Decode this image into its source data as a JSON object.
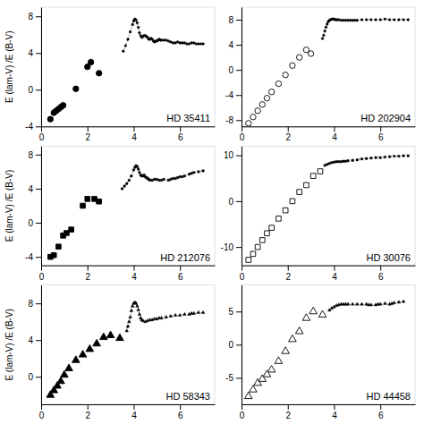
{
  "chart_data": [
    {
      "type": "scatter",
      "title": "HD 35411",
      "y_label": "E (lam-V) /E (B-V)",
      "xlim": [
        0,
        7.5
      ],
      "xticks": [
        0,
        2,
        4,
        6
      ],
      "ylim": [
        -4,
        9
      ],
      "yticks": [
        -4,
        0,
        4,
        8
      ],
      "series": [
        {
          "type": "scatter",
          "marker": "circle",
          "color": "black",
          "x": [
            0.4,
            0.55,
            0.65,
            0.75,
            0.85,
            0.95,
            1.5,
            2.0,
            2.15,
            2.5
          ],
          "values": [
            -3.2,
            -2.5,
            -2.3,
            -2.1,
            -1.9,
            -1.7,
            0.1,
            2.5,
            3.0,
            1.8
          ]
        },
        {
          "type": "line",
          "marker": "circle",
          "line_style": "dotted",
          "color": "black",
          "x": [
            3.55,
            3.65,
            3.75,
            3.85,
            3.95,
            4.0,
            4.05,
            4.1,
            4.15,
            4.2,
            4.25,
            4.3,
            4.35,
            4.4,
            4.45,
            4.5,
            4.55,
            4.6,
            4.65,
            4.7,
            4.75,
            4.8,
            4.85,
            4.9,
            4.95,
            5.0,
            5.05,
            5.1,
            5.15,
            5.2,
            5.3,
            5.4,
            5.5,
            5.6,
            5.7,
            5.8,
            5.9,
            6.0,
            6.1,
            6.2,
            6.3,
            6.4,
            6.5,
            6.6,
            6.7,
            6.8,
            6.9,
            7.0
          ],
          "values": [
            4.2,
            4.8,
            5.5,
            6.3,
            7.1,
            7.5,
            7.7,
            7.6,
            7.3,
            6.8,
            6.2,
            5.9,
            5.7,
            5.8,
            5.9,
            5.9,
            5.8,
            5.7,
            5.5,
            5.5,
            5.6,
            5.5,
            5.3,
            5.2,
            5.3,
            5.3,
            5.4,
            5.5,
            5.4,
            5.4,
            5.4,
            5.4,
            5.3,
            5.2,
            5.1,
            5.1,
            5.2,
            5.1,
            5.1,
            5.1,
            5.0,
            5.0,
            5.1,
            5.1,
            5.0,
            5.0,
            5.0,
            5.0
          ]
        }
      ]
    },
    {
      "type": "scatter",
      "title": "HD 202904",
      "xlim": [
        0,
        7.5
      ],
      "xticks": [
        0,
        2,
        4,
        6
      ],
      "ylim": [
        -9,
        10
      ],
      "yticks": [
        -8,
        -4,
        0,
        4,
        8
      ],
      "series": [
        {
          "type": "scatter",
          "marker": "open-circle",
          "color": "black",
          "x": [
            0.3,
            0.5,
            0.7,
            0.9,
            1.1,
            1.3,
            1.6,
            1.9,
            2.2,
            2.5,
            2.8,
            3.0
          ],
          "values": [
            -8.5,
            -7.5,
            -6.5,
            -5.5,
            -4.5,
            -3.5,
            -2.2,
            -0.8,
            0.7,
            2.0,
            3.2,
            2.6
          ]
        },
        {
          "type": "line",
          "marker": "circle",
          "line_style": "dotted",
          "color": "black",
          "x": [
            3.5,
            3.55,
            3.6,
            3.65,
            3.7,
            3.75,
            3.8,
            3.85,
            3.9,
            3.95,
            4.0,
            4.05,
            4.1,
            4.15,
            4.2,
            4.3,
            4.4,
            4.5,
            4.6,
            4.7,
            4.8,
            4.9,
            5.0,
            5.2,
            5.4,
            5.6,
            5.8,
            6.0,
            6.2,
            6.4,
            6.6,
            6.8,
            7.0,
            7.2
          ],
          "values": [
            5.0,
            5.5,
            6.2,
            6.8,
            7.3,
            7.7,
            7.9,
            8.0,
            8.1,
            8.1,
            8.1,
            8.0,
            8.0,
            8.0,
            8.0,
            7.9,
            7.9,
            7.9,
            7.9,
            7.9,
            7.9,
            7.9,
            7.9,
            8.0,
            8.0,
            8.0,
            8.0,
            8.0,
            8.1,
            8.0,
            8.0,
            8.0,
            8.0,
            8.0
          ]
        }
      ]
    },
    {
      "type": "scatter",
      "title": "HD 212076",
      "y_label": "E (lam-V) /E (B-V)",
      "xlim": [
        0,
        7.5
      ],
      "xticks": [
        0,
        2,
        4,
        6
      ],
      "ylim": [
        -5,
        9
      ],
      "yticks": [
        -4,
        0,
        4,
        8
      ],
      "series": [
        {
          "type": "scatter",
          "marker": "square",
          "color": "black",
          "x": [
            0.4,
            0.55,
            0.75,
            0.95,
            1.1,
            1.3,
            1.8,
            2.0,
            2.3,
            2.5
          ],
          "values": [
            -4.0,
            -3.8,
            -2.8,
            -1.5,
            -1.2,
            -0.8,
            2.0,
            2.8,
            2.8,
            2.5
          ]
        },
        {
          "type": "line",
          "marker": "square",
          "line_style": "dotted",
          "color": "black",
          "x": [
            3.5,
            3.6,
            3.7,
            3.8,
            3.9,
            4.0,
            4.05,
            4.1,
            4.15,
            4.2,
            4.25,
            4.3,
            4.35,
            4.4,
            4.45,
            4.5,
            4.55,
            4.6,
            4.65,
            4.7,
            4.8,
            4.9,
            5.0,
            5.1,
            5.2,
            5.3,
            5.5,
            5.6,
            5.7,
            5.8,
            5.9,
            6.0,
            6.1,
            6.2,
            6.4,
            6.5,
            6.6,
            6.8,
            7.0
          ],
          "values": [
            4.0,
            4.3,
            4.6,
            5.0,
            5.5,
            6.2,
            6.5,
            6.7,
            6.6,
            6.3,
            5.9,
            5.6,
            5.5,
            5.5,
            5.6,
            5.4,
            5.3,
            5.2,
            5.1,
            5.0,
            5.0,
            5.1,
            5.1,
            5.0,
            5.0,
            5.1,
            5.0,
            5.1,
            5.2,
            5.2,
            5.3,
            5.4,
            5.4,
            5.5,
            5.7,
            5.8,
            5.9,
            6.0,
            6.1
          ]
        }
      ]
    },
    {
      "type": "scatter",
      "title": "HD 30076",
      "xlim": [
        0,
        7.5
      ],
      "xticks": [
        0,
        2,
        4,
        6
      ],
      "ylim": [
        -14,
        12
      ],
      "yticks": [
        -10,
        0,
        10
      ],
      "series": [
        {
          "type": "scatter",
          "marker": "open-square",
          "color": "black",
          "x": [
            0.3,
            0.5,
            0.7,
            0.9,
            1.1,
            1.3,
            1.6,
            1.9,
            2.2,
            2.5,
            2.8,
            3.1,
            3.4
          ],
          "values": [
            -12.8,
            -11.5,
            -10.0,
            -8.5,
            -7.0,
            -5.8,
            -3.8,
            -2.0,
            0.0,
            2.0,
            3.5,
            5.5,
            6.5
          ]
        },
        {
          "type": "line",
          "marker": "square",
          "line_style": "dotted",
          "color": "black",
          "x": [
            3.6,
            3.7,
            3.8,
            3.9,
            4.0,
            4.1,
            4.2,
            4.3,
            4.4,
            4.5,
            4.6,
            4.8,
            5.0,
            5.2,
            5.4,
            5.6,
            5.8,
            6.0,
            6.2,
            6.4,
            6.6,
            6.8,
            7.0,
            7.2
          ],
          "values": [
            7.8,
            8.0,
            8.2,
            8.4,
            8.5,
            8.6,
            8.6,
            8.6,
            8.7,
            8.7,
            8.8,
            8.9,
            9.0,
            9.2,
            9.3,
            9.4,
            9.5,
            9.5,
            9.6,
            9.7,
            9.8,
            9.8,
            9.9,
            9.9
          ]
        }
      ]
    },
    {
      "type": "scatter",
      "title": "HD 58343",
      "y_label": "E (lam-V) /E (B-V)",
      "xlim": [
        0,
        7.5
      ],
      "xticks": [
        0,
        2,
        4,
        6
      ],
      "ylim": [
        -3,
        10
      ],
      "yticks": [
        0,
        4,
        8
      ],
      "series": [
        {
          "type": "scatter",
          "marker": "triangle-up",
          "color": "black",
          "x": [
            0.4,
            0.55,
            0.7,
            0.85,
            1.0,
            1.2,
            1.5,
            1.8,
            2.1,
            2.4,
            2.7,
            3.0,
            3.4
          ],
          "values": [
            -2.0,
            -1.5,
            -1.0,
            -0.5,
            0.2,
            0.9,
            1.8,
            2.4,
            3.0,
            3.6,
            4.3,
            4.5,
            4.2
          ]
        },
        {
          "type": "line",
          "marker": "triangle-up",
          "line_style": "dotted",
          "color": "black",
          "x": [
            3.7,
            3.75,
            3.8,
            3.85,
            3.9,
            3.95,
            4.0,
            4.05,
            4.1,
            4.15,
            4.2,
            4.25,
            4.3,
            4.35,
            4.4,
            4.5,
            4.6,
            4.7,
            4.8,
            4.9,
            5.0,
            5.1,
            5.2,
            5.4,
            5.6,
            5.8,
            6.0,
            6.2,
            6.4,
            6.5,
            6.6,
            6.8,
            7.0
          ],
          "values": [
            5.0,
            5.5,
            6.0,
            6.5,
            7.2,
            7.7,
            8.0,
            8.1,
            8.0,
            7.7,
            7.3,
            6.8,
            6.4,
            6.2,
            6.1,
            6.0,
            6.1,
            6.2,
            6.2,
            6.3,
            6.3,
            6.4,
            6.4,
            6.5,
            6.6,
            6.7,
            6.7,
            6.8,
            6.8,
            6.9,
            6.9,
            7.0,
            7.0
          ]
        }
      ]
    },
    {
      "type": "scatter",
      "title": "HD 44458",
      "xlim": [
        0,
        7.5
      ],
      "xticks": [
        0,
        2,
        4,
        6
      ],
      "ylim": [
        -9,
        9
      ],
      "yticks": [
        -5,
        0,
        5
      ],
      "series": [
        {
          "type": "scatter",
          "marker": "open-triangle-up",
          "color": "black",
          "x": [
            0.3,
            0.5,
            0.7,
            0.9,
            1.1,
            1.3,
            1.6,
            1.9,
            2.2,
            2.5,
            2.8,
            3.1,
            3.5
          ],
          "values": [
            -7.8,
            -6.8,
            -5.8,
            -5.2,
            -4.5,
            -3.8,
            -2.5,
            -1.0,
            0.8,
            2.0,
            4.0,
            5.0,
            4.5
          ]
        },
        {
          "type": "line",
          "marker": "triangle-up",
          "line_style": "dotted",
          "color": "black",
          "x": [
            3.8,
            3.9,
            4.0,
            4.1,
            4.2,
            4.3,
            4.4,
            4.5,
            4.6,
            4.8,
            5.0,
            5.2,
            5.4,
            5.5,
            5.6,
            5.8,
            5.9,
            6.0,
            6.2,
            6.4,
            6.5,
            6.6,
            6.8,
            7.0
          ],
          "values": [
            5.2,
            5.5,
            5.7,
            5.9,
            6.0,
            6.1,
            6.1,
            6.1,
            6.1,
            6.1,
            6.1,
            6.1,
            6.1,
            6.0,
            6.0,
            6.0,
            6.1,
            6.1,
            6.2,
            6.1,
            6.2,
            6.3,
            6.4,
            6.5
          ]
        }
      ]
    }
  ]
}
